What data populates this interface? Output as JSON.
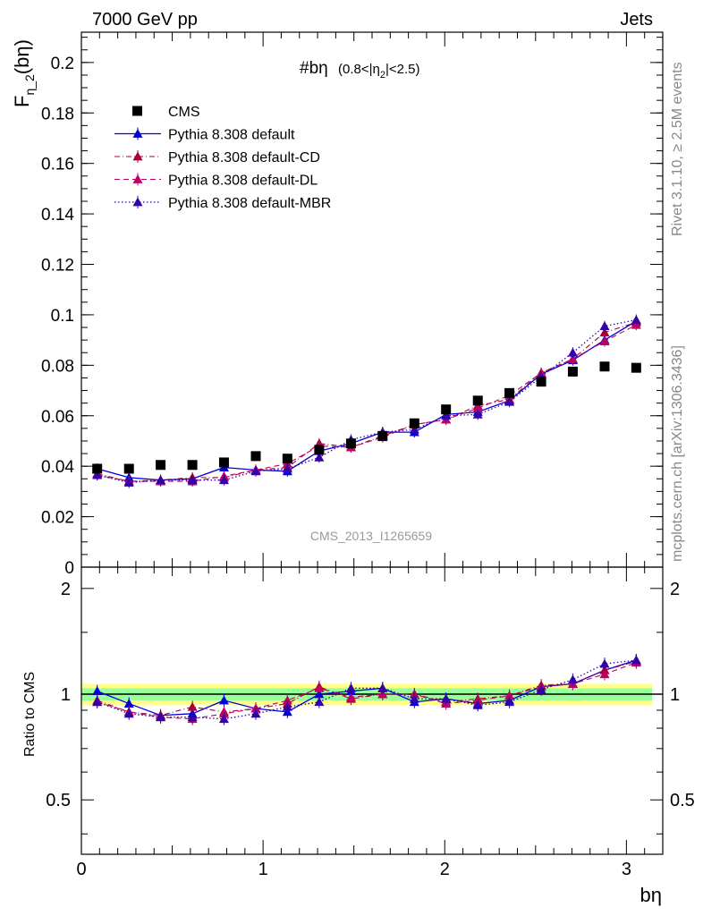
{
  "header": {
    "left": "7000 GeV pp",
    "right": "Jets"
  },
  "side": {
    "rivet": "Rivet 3.1.10, ≥ 2.5M events",
    "mcplots": "mcplots.cern.ch [arXiv:1306.3436]"
  },
  "watermark": "CMS_2013_I1265659",
  "colors": {
    "data": "#000000",
    "default": "#0000dd",
    "cd": "#aa0033",
    "dl": "#bb0066",
    "mbr": "#3300aa",
    "band_inner": "#99ff99",
    "band_outer": "#ffff88"
  },
  "chart_data": {
    "type": "scatter",
    "title_main": "#bη",
    "title_cut_a": "(0.8<|η",
    "title_cut_sub": "2",
    "title_cut_b": "|<2.5)",
    "ylabel_main": "F",
    "ylabel_sub": "η_2",
    "ylabel_arg": "(bη)",
    "ratio_ylabel": "Ratio to CMS",
    "xlabel": "bη",
    "xlim": [
      0,
      3.2
    ],
    "ylim": [
      0,
      0.212
    ],
    "ratio_ylim": [
      0.35,
      2.3
    ],
    "ratio_log": true,
    "x_ticks": [
      "0",
      "1",
      "2",
      "3"
    ],
    "y_ticks": [
      "0",
      "0.02",
      "0.04",
      "0.06",
      "0.08",
      "0.1",
      "0.12",
      "0.14",
      "0.16",
      "0.18",
      "0.2"
    ],
    "ratio_ticks": [
      "0.5",
      "1",
      "2"
    ],
    "x": [
      0.087,
      0.262,
      0.436,
      0.611,
      0.785,
      0.96,
      1.134,
      1.309,
      1.484,
      1.658,
      1.833,
      2.007,
      2.182,
      2.356,
      2.531,
      2.705,
      2.88,
      3.054
    ],
    "series": [
      {
        "name": "CMS",
        "key": "data",
        "values": [
          0.039,
          0.039,
          0.0405,
          0.0405,
          0.0415,
          0.044,
          0.043,
          0.0465,
          0.049,
          0.052,
          0.057,
          0.0625,
          0.066,
          0.069,
          0.0735,
          0.0775,
          0.0795,
          0.079
        ]
      },
      {
        "name": "Pythia 8.308 default",
        "key": "default",
        "values": [
          0.039,
          0.0355,
          0.0345,
          0.035,
          0.0395,
          0.0385,
          0.038,
          0.046,
          0.049,
          0.0535,
          0.0535,
          0.0605,
          0.0615,
          0.066,
          0.0765,
          0.082,
          0.09,
          0.0975
        ]
      },
      {
        "name": "Pythia 8.308 default-CD",
        "key": "cd",
        "values": [
          0.037,
          0.034,
          0.0345,
          0.0355,
          0.0355,
          0.0385,
          0.0395,
          0.049,
          0.0475,
          0.052,
          0.0565,
          0.0585,
          0.064,
          0.0665,
          0.077,
          0.0825,
          0.093,
          0.097
        ]
      },
      {
        "name": "Pythia 8.308 default-DL",
        "key": "dl",
        "values": [
          0.0365,
          0.034,
          0.034,
          0.034,
          0.036,
          0.0385,
          0.041,
          0.048,
          0.0475,
          0.0515,
          0.0565,
          0.0585,
          0.063,
          0.068,
          0.077,
          0.0825,
          0.0895,
          0.096
        ]
      },
      {
        "name": "Pythia 8.308 default-MBR",
        "key": "mbr",
        "values": [
          0.0365,
          0.0335,
          0.0345,
          0.0345,
          0.0345,
          0.038,
          0.039,
          0.0435,
          0.0505,
          0.0535,
          0.0545,
          0.06,
          0.0605,
          0.0655,
          0.0755,
          0.085,
          0.0955,
          0.098
        ]
      }
    ],
    "ratios": {
      "default": [
        1.02,
        0.94,
        0.87,
        0.88,
        0.96,
        0.91,
        0.89,
        1.0,
        1.02,
        1.04,
        0.95,
        0.97,
        0.94,
        0.96,
        1.05,
        1.07,
        1.17,
        1.25
      ],
      "cd": [
        0.96,
        0.89,
        0.87,
        0.92,
        0.89,
        0.91,
        0.94,
        1.05,
        0.97,
        1.0,
        1.0,
        0.95,
        0.97,
        0.99,
        1.06,
        1.07,
        1.17,
        1.24
      ],
      "dl": [
        0.95,
        0.89,
        0.86,
        0.85,
        0.88,
        0.91,
        0.96,
        1.04,
        0.98,
        1.0,
        1.0,
        0.94,
        0.96,
        0.99,
        1.05,
        1.07,
        1.14,
        1.23
      ],
      "mbr": [
        0.95,
        0.88,
        0.86,
        0.86,
        0.85,
        0.88,
        0.92,
        0.95,
        1.04,
        1.04,
        0.97,
        0.97,
        0.93,
        0.95,
        1.03,
        1.1,
        1.22,
        1.25
      ]
    },
    "band_outer": 0.07,
    "band_inner": 0.04
  }
}
